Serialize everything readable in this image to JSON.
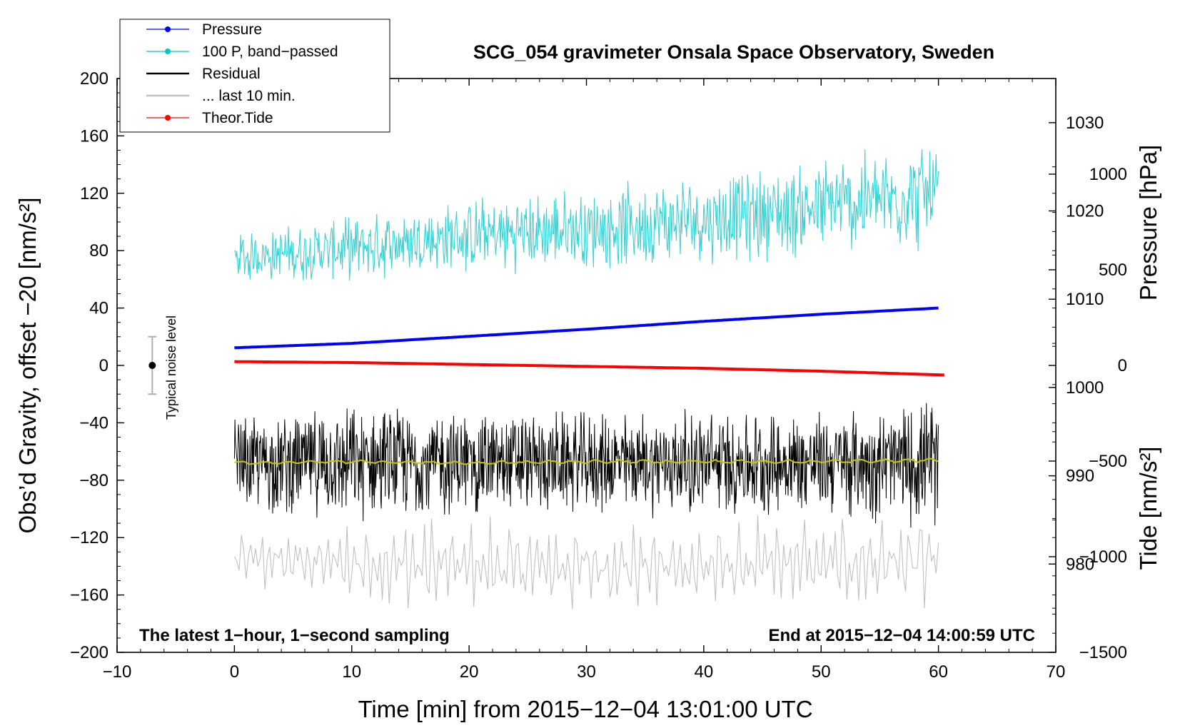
{
  "chart_data": {
    "type": "line",
    "title": "SCG_054 gravimeter Onsala Space Observatory, Sweden",
    "xlabel": "Time [min] from 2015−12−04 13:01:00 UTC",
    "ylabel_left": "Obs’d Gravity, offset −20 [nm/s²]",
    "ylabel_right_pressure": "Pressure [hPa]",
    "ylabel_right_tide": "Tide [nm/s²]",
    "xlim": [
      -10,
      70
    ],
    "ylim_left": [
      -200,
      200
    ],
    "ylim_right_pressure": [
      970,
      1035
    ],
    "ylim_right_tide": [
      -1500,
      1500
    ],
    "x_ticks": [
      "−10",
      "0",
      "10",
      "20",
      "30",
      "40",
      "50",
      "60",
      "70"
    ],
    "x_tick_values": [
      -10,
      0,
      10,
      20,
      30,
      40,
      50,
      60,
      70
    ],
    "y_left_ticks": [
      "200",
      "160",
      "120",
      "80",
      "40",
      "0",
      "−40",
      "−80",
      "−120",
      "−160",
      "−200"
    ],
    "y_left_tick_values": [
      200,
      160,
      120,
      80,
      40,
      0,
      -40,
      -80,
      -120,
      -160,
      -200
    ],
    "pressure_ticks": [
      "1030",
      "1020",
      "1010",
      "1000",
      "990",
      "980"
    ],
    "pressure_tick_values": [
      1030,
      1020,
      1010,
      1000,
      990,
      980
    ],
    "tide_ticks": [
      "1000",
      "500",
      "0",
      "−500",
      "−1000",
      "−1500"
    ],
    "tide_tick_values": [
      1000,
      500,
      0,
      -500,
      -1000,
      -1500
    ],
    "annotations": {
      "bottom_left": "The latest 1−hour, 1−second sampling",
      "bottom_right": "End at 2015−12−04 14:00:59 UTC",
      "noise_label": "Typical noise level"
    },
    "noise_bar": {
      "x": -7,
      "center": 0,
      "half_range": 20
    },
    "legend": [
      {
        "label": "Pressure",
        "color": "#0000ff",
        "marker": true
      },
      {
        "label": "100 P, band−passed",
        "color": "#00c8c8",
        "marker": true
      },
      {
        "label": "Residual",
        "color": "#000000",
        "marker": false
      },
      {
        "label": "... last 10 min.",
        "color": "#c0c0c0",
        "marker": false
      },
      {
        "label": "Theor.Tide",
        "color": "#ff0000",
        "marker": true
      }
    ],
    "series": [
      {
        "name": "Pressure",
        "axis": "pressure",
        "color": "#0000ff",
        "x": [
          0,
          10,
          20,
          30,
          40,
          50,
          60
        ],
        "values": [
          1004.5,
          1005.0,
          1005.8,
          1006.6,
          1007.5,
          1008.3,
          1009.0
        ]
      },
      {
        "name": "100 P, band−passed",
        "axis": "left",
        "color": "#3cd2d2",
        "x": [
          0,
          10,
          20,
          30,
          40,
          50,
          60
        ],
        "values": [
          75,
          82,
          90,
          95,
          102,
          110,
          120
        ],
        "amplitude": [
          15,
          20,
          24,
          26,
          28,
          32,
          35
        ]
      },
      {
        "name": "Residual",
        "axis": "left",
        "color": "#000000",
        "x": [
          0,
          10,
          20,
          30,
          40,
          50,
          60
        ],
        "values": [
          -68,
          -68,
          -68,
          -68,
          -68,
          -68,
          -68
        ],
        "amplitude": [
          30,
          36,
          34,
          32,
          34,
          33,
          40
        ]
      },
      {
        "name": "Residual (smoothed)",
        "axis": "left",
        "color": "#c8c800",
        "x": [
          0,
          10,
          20,
          30,
          40,
          50,
          60
        ],
        "values": [
          -68,
          -67,
          -68,
          -67,
          -67,
          -67,
          -66
        ]
      },
      {
        "name": "... last 10 min.",
        "axis": "left",
        "color": "#c0c0c0",
        "x": [
          0,
          10,
          20,
          30,
          40,
          50,
          60
        ],
        "values": [
          -135,
          -138,
          -140,
          -140,
          -140,
          -138,
          -135
        ],
        "amplitude": [
          15,
          25,
          28,
          25,
          22,
          30,
          28
        ]
      },
      {
        "name": "Theor.Tide",
        "axis": "tide",
        "color": "#ff0000",
        "x": [
          0,
          10,
          20,
          30,
          40,
          50,
          60.5
        ],
        "values": [
          20,
          15,
          5,
          -5,
          -15,
          -30,
          -50
        ]
      }
    ]
  }
}
